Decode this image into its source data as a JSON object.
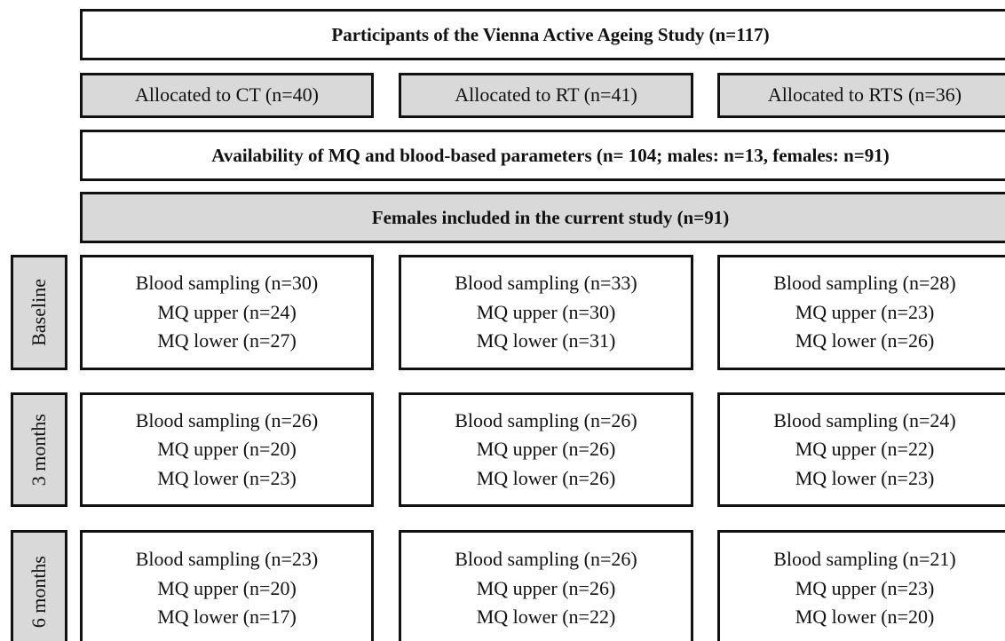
{
  "header": {
    "title": "Participants of the Vienna Active Ageing Study (n=117)"
  },
  "groups": [
    "Allocated to CT (n=40)",
    "Allocated to RT (n=41)",
    "Allocated to RTS (n=36)"
  ],
  "availability": "Availability of MQ and blood-based parameters (n= 104; males: n=13, females: n=91)",
  "included": "Females included in the current study (n=91)",
  "timepoints": [
    {
      "label": "Baseline",
      "cells": [
        [
          "Blood sampling (n=30)",
          "MQ upper (n=24)",
          "MQ lower (n=27)"
        ],
        [
          "Blood sampling (n=33)",
          "MQ upper (n=30)",
          "MQ lower (n=31)"
        ],
        [
          "Blood sampling (n=28)",
          "MQ upper (n=23)",
          "MQ lower (n=26)"
        ]
      ]
    },
    {
      "label": "3 months",
      "cells": [
        [
          "Blood sampling (n=26)",
          "MQ upper (n=20)",
          "MQ lower (n=23)"
        ],
        [
          "Blood sampling (n=26)",
          "MQ upper (n=26)",
          "MQ lower (n=26)"
        ],
        [
          "Blood sampling (n=24)",
          "MQ upper (n=22)",
          "MQ lower (n=23)"
        ]
      ]
    },
    {
      "label": "6 months",
      "cells": [
        [
          "Blood sampling (n=23)",
          "MQ upper (n=20)",
          "MQ lower (n=17)"
        ],
        [
          "Blood sampling (n=26)",
          "MQ upper (n=26)",
          "MQ lower (n=22)"
        ],
        [
          "Blood sampling (n=21)",
          "MQ upper (n=23)",
          "MQ lower (n=20)"
        ]
      ]
    }
  ]
}
